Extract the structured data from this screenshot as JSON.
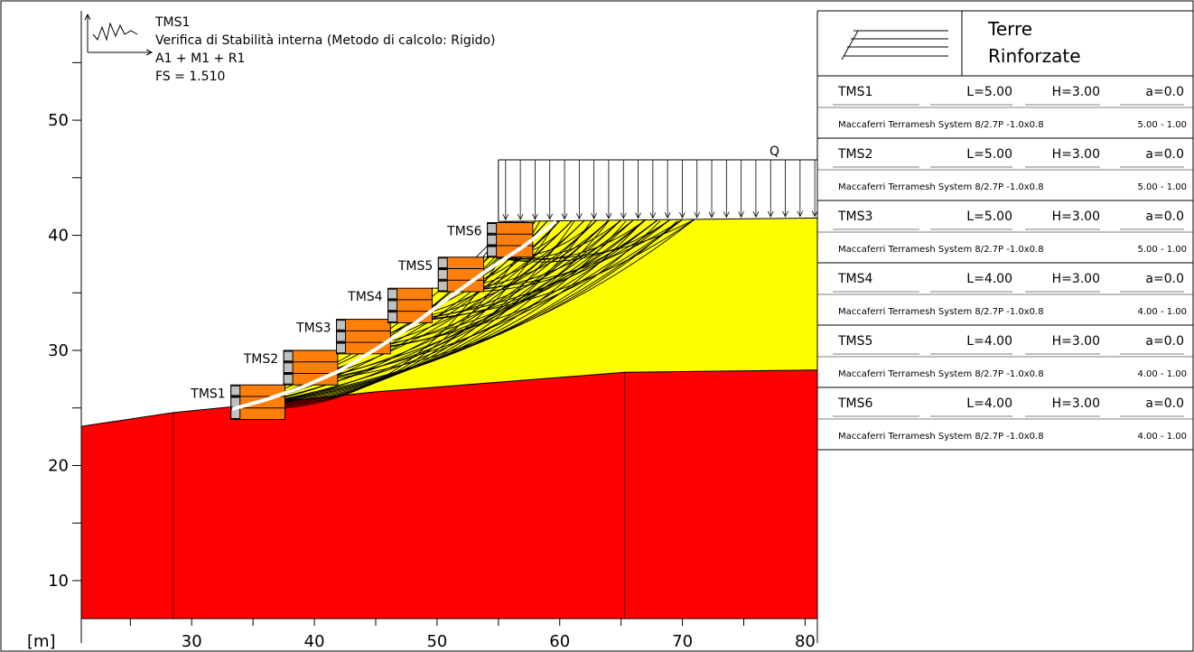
{
  "diagram": {
    "unit_label": "[m]",
    "x_axis": {
      "min": 21,
      "max": 81,
      "ticks": [
        30,
        40,
        50,
        60,
        70,
        80
      ],
      "minor_ticks": [
        25,
        35,
        45,
        55,
        65,
        75
      ]
    },
    "y_axis": {
      "min": 6.7,
      "max": 59.5,
      "ticks": [
        10,
        20,
        30,
        40,
        50
      ],
      "minor_ticks": [
        15,
        25,
        35,
        45,
        55
      ]
    },
    "info": {
      "line1": "TMS1",
      "line2": "Verifica di Stabilità interna (Metodo di calcolo: Rigido)",
      "line3": "A1 + M1 + R1",
      "line4": "FS = 1.510"
    },
    "load_label": "Q",
    "terrain": {
      "foundation": [
        [
          21,
          23.4
        ],
        [
          28.5,
          24.6
        ],
        [
          33.3,
          25.1
        ],
        [
          45,
          26.4
        ],
        [
          65.3,
          28.1
        ],
        [
          81,
          28.3
        ]
      ],
      "fill_top": [
        [
          55,
          41.2
        ],
        [
          81,
          41.5
        ]
      ]
    },
    "walls": [
      {
        "name": "TMS1",
        "x0": 33.2,
        "x1": 37.6,
        "y0": 24.0,
        "y1": 27.0,
        "rows": 3
      },
      {
        "name": "TMS2",
        "x0": 37.5,
        "x1": 41.9,
        "y0": 27.0,
        "y1": 30.0,
        "rows": 3
      },
      {
        "name": "TMS3",
        "x0": 41.8,
        "x1": 46.2,
        "y0": 29.7,
        "y1": 32.7,
        "rows": 3
      },
      {
        "name": "TMS4",
        "x0": 46.0,
        "x1": 49.6,
        "y0": 32.4,
        "y1": 35.4,
        "rows": 3
      },
      {
        "name": "TMS5",
        "x0": 50.1,
        "x1": 53.8,
        "y0": 35.1,
        "y1": 38.1,
        "rows": 3
      },
      {
        "name": "TMS6",
        "x0": 54.1,
        "x1": 57.8,
        "y0": 38.1,
        "y1": 41.1,
        "rows": 3
      }
    ],
    "critical_surface": [
      [
        33.3,
        24.9
      ],
      [
        36,
        25.7
      ],
      [
        39,
        26.8
      ],
      [
        42,
        28.2
      ],
      [
        45,
        30.1
      ],
      [
        48,
        32.2
      ],
      [
        51,
        34.6
      ],
      [
        54,
        36.9
      ],
      [
        57,
        39.0
      ],
      [
        59.7,
        41.2
      ]
    ]
  },
  "panel": {
    "brand_line1": "Terre",
    "brand_line2": "Rinforzate",
    "rows": [
      {
        "name": "TMS1",
        "L": "L=5.00",
        "H": "H=3.00",
        "a": "a=0.0",
        "product": "Maccaferri Terramesh System 8/2.7P -1.0x0.8",
        "range": "5.00 - 1.00"
      },
      {
        "name": "TMS2",
        "L": "L=5.00",
        "H": "H=3.00",
        "a": "a=0.0",
        "product": "Maccaferri Terramesh System 8/2.7P -1.0x0.8",
        "range": "5.00 - 1.00"
      },
      {
        "name": "TMS3",
        "L": "L=5.00",
        "H": "H=3.00",
        "a": "a=0.0",
        "product": "Maccaferri Terramesh System 8/2.7P -1.0x0.8",
        "range": "5.00 - 1.00"
      },
      {
        "name": "TMS4",
        "L": "L=4.00",
        "H": "H=3.00",
        "a": "a=0.0",
        "product": "Maccaferri Terramesh System 8/2.7P -1.0x0.8",
        "range": "4.00 - 1.00"
      },
      {
        "name": "TMS5",
        "L": "L=4.00",
        "H": "H=3.00",
        "a": "a=0.0",
        "product": "Maccaferri Terramesh System 8/2.7P -1.0x0.8",
        "range": "4.00 - 1.00"
      },
      {
        "name": "TMS6",
        "L": "L=4.00",
        "H": "H=3.00",
        "a": "a=0.0",
        "product": "Maccaferri Terramesh System 8/2.7P -1.0x0.8",
        "range": "4.00 - 1.00"
      }
    ]
  },
  "colors": {
    "foundation": "#ff0000",
    "fill": "#ffff00",
    "wall_fill": "#ff7f0a",
    "wall_facing": "#c0c0c0",
    "critical": "#ffffff",
    "lines": "#000000"
  }
}
